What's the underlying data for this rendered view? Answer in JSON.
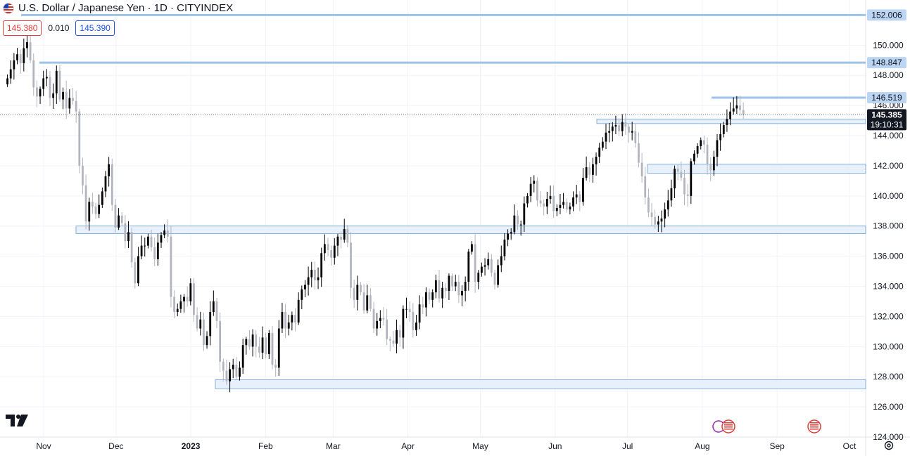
{
  "header": {
    "title": "U.S. Dollar / Japanese Yen · 1D · CITYINDEX",
    "bid": "145.380",
    "spread": "0.010",
    "ask": "145.390"
  },
  "icons": {
    "flag": "us-flag-icon",
    "logo": "tradingview-logo-icon",
    "settings": "settings-gear-icon",
    "events": "economic-event-icon"
  },
  "colors": {
    "candle_up": "#000000",
    "candle_down": "#b2b5be",
    "zone_fill": "#e8f0fb",
    "zone_stroke": "#6a9fd8",
    "level_line": "#9ec3ea",
    "level_label_bg": "#bbd5f3",
    "current_price_bg": "#131722",
    "grid": "#f0f3fa"
  },
  "chart_data": {
    "type": "candlestick",
    "symbol": "U.S. Dollar / Japanese Yen",
    "interval": "1D",
    "source": "CITYINDEX",
    "ylim": [
      124,
      153
    ],
    "y_ticks": [
      "124.000",
      "126.000",
      "128.000",
      "130.000",
      "132.000",
      "134.000",
      "136.000",
      "138.000",
      "140.000",
      "142.000",
      "144.000",
      "146.000",
      "148.000",
      "150.000"
    ],
    "x_ticks": [
      {
        "label": "Nov",
        "date": "2022-11-01"
      },
      {
        "label": "Dec",
        "date": "2022-12-01"
      },
      {
        "label": "2023",
        "date": "2023-01-01"
      },
      {
        "label": "Feb",
        "date": "2023-02-01"
      },
      {
        "label": "Mar",
        "date": "2023-03-01"
      },
      {
        "label": "Apr",
        "date": "2023-04-01"
      },
      {
        "label": "May",
        "date": "2023-05-01"
      },
      {
        "label": "Jun",
        "date": "2023-06-01"
      },
      {
        "label": "Jul",
        "date": "2023-07-01"
      },
      {
        "label": "Aug",
        "date": "2023-08-01"
      },
      {
        "label": "Sep",
        "date": "2023-09-01"
      },
      {
        "label": "Oct",
        "date": "2023-10-01"
      }
    ],
    "first_date": "2022-10-17",
    "last_date": "2023-08-18",
    "closes": [
      147.8,
      148.4,
      149.0,
      149.4,
      148.8,
      149.8,
      150.2,
      149.0,
      147.2,
      146.6,
      147.1,
      147.8,
      147.9,
      146.5,
      146.8,
      148.3,
      146.4,
      146.9,
      145.8,
      146.5,
      146.3,
      145.6,
      142.0,
      140.7,
      138.3,
      139.6,
      139.3,
      138.8,
      139.4,
      140.3,
      141.3,
      142.1,
      139.4,
      137.9,
      138.7,
      138.2,
      137.0,
      137.6,
      135.6,
      134.2,
      136.0,
      136.7,
      136.7,
      137.3,
      136.6,
      135.8,
      136.9,
      137.4,
      137.7,
      137.3,
      133.3,
      132.3,
      132.5,
      133.0,
      133.3,
      133.0,
      134.2,
      132.1,
      131.2,
      131.8,
      130.1,
      130.7,
      132.3,
      133.0,
      131.7,
      129.0,
      128.4,
      127.7,
      128.5,
      128.8,
      128.0,
      128.6,
      130.1,
      130.5,
      130.0,
      130.8,
      130.0,
      129.6,
      130.6,
      129.5,
      130.9,
      128.8,
      128.6,
      131.2,
      132.3,
      131.2,
      131.6,
      132.1,
      131.6,
      133.1,
      133.8,
      134.1,
      134.6,
      135.1,
      134.4,
      134.6,
      136.2,
      136.8,
      136.4,
      135.9,
      136.7,
      137.3,
      137.1,
      137.8,
      136.9,
      133.9,
      133.1,
      134.1,
      133.6,
      132.4,
      133.4,
      132.5,
      131.2,
      131.7,
      131.9,
      131.8,
      130.5,
      130.4,
      130.2,
      131.1,
      130.6,
      132.5,
      132.5,
      132.3,
      131.1,
      131.6,
      132.8,
      132.6,
      133.6,
      133.1,
      133.6,
      134.4,
      133.2,
      133.9,
      133.7,
      134.7,
      134.0,
      134.3,
      133.4,
      133.7,
      134.3,
      136.3,
      136.8,
      134.3,
      134.9,
      135.3,
      135.4,
      135.8,
      134.9,
      134.1,
      135.4,
      136.0,
      137.1,
      137.5,
      137.6,
      138.7,
      138.1,
      138.1,
      139.5,
      140.0,
      140.8,
      141.0,
      139.7,
      139.5,
      139.3,
      139.8,
      140.0,
      139.0,
      139.2,
      139.4,
      139.6,
      139.1,
      139.3,
      139.9,
      140.1,
      139.6,
      141.2,
      141.9,
      141.4,
      142.1,
      142.6,
      143.2,
      143.6,
      144.2,
      144.3,
      144.6,
      144.7,
      144.3,
      144.9,
      144.6,
      144.2,
      144.3,
      143.5,
      142.2,
      141.3,
      139.9,
      138.9,
      138.6,
      138.1,
      138.3,
      138.5,
      139.1,
      139.7,
      140.5,
      141.8,
      141.6,
      141.2,
      140.1,
      140.0,
      142.3,
      142.8,
      143.3,
      143.7,
      143.4,
      142.1,
      141.7,
      142.6,
      143.7,
      144.1,
      144.7,
      145.1,
      145.6,
      145.8,
      146.0,
      145.7,
      145.4
    ],
    "price_levels": [
      {
        "label": "152.006",
        "value": 152.006
      },
      {
        "label": "148.847",
        "value": 148.847
      },
      {
        "label": "146.519",
        "value": 146.519
      }
    ],
    "zones": [
      {
        "top": 145.1,
        "bottom": 144.8
      },
      {
        "top": 142.1,
        "bottom": 141.5
      },
      {
        "top": 138.0,
        "bottom": 137.5
      },
      {
        "top": 127.8,
        "bottom": 127.2
      }
    ],
    "current_price": {
      "label": "145.385",
      "value": 145.385,
      "countdown": "19:10:31"
    }
  }
}
